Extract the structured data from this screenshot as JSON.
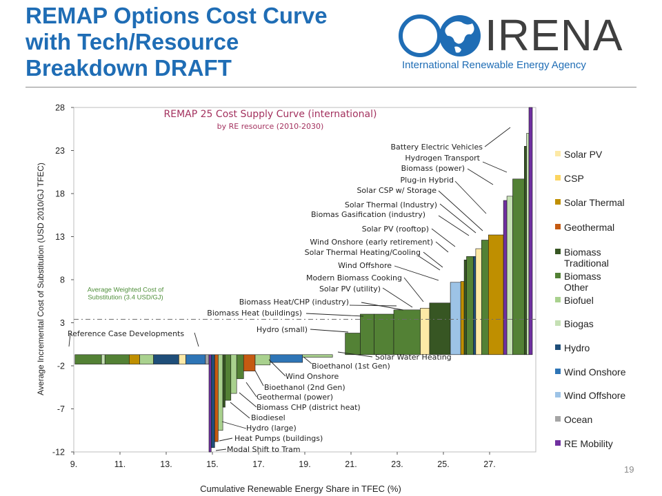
{
  "slide": {
    "title": "REMAP Options Cost Curve\nwith Tech/Resource\nBreakdown DRAFT",
    "page_number": "19"
  },
  "logo": {
    "name": "IRENA",
    "subtitle": "International Renewable Energy Agency",
    "icon": "globe-icon"
  },
  "chart_data": {
    "type": "bar",
    "title": "REMAP 25 Cost Supply Curve (international)",
    "subtitle": "by RE resource (2010-2030)",
    "xlabel": "Cumulative Renewable Energy Share in TFEC (%)",
    "ylabel": "Average Incremental Cost of Substitution (USD 2010/GJ TFEC)",
    "xlim": [
      9,
      29
    ],
    "ylim": [
      -12,
      28
    ],
    "xticks": [
      9,
      11,
      13,
      15,
      17,
      19,
      21,
      23,
      25,
      27
    ],
    "xtick_labels": [
      "9.",
      "11.",
      "13.",
      "15.",
      "17.",
      "19.",
      "21.",
      "23.",
      "25.",
      "27."
    ],
    "yticks": [
      -12,
      -7,
      -2,
      3,
      8,
      13,
      18,
      23,
      28
    ],
    "grid": false,
    "legend_position": "right",
    "average_line": {
      "value": 3.4,
      "label": "Average Weighted Cost of\nSubstitution (3.4 USD/GJ)"
    },
    "categories": [
      "Solar PV",
      "CSP",
      "Solar Thermal",
      "Geothermal",
      "Biomass\nTraditional",
      "Biomass\nOther",
      "Biofuel",
      "Biogas",
      "Hydro",
      "Wind Onshore",
      "Wind Offshore",
      "Ocean",
      "RE Mobility"
    ],
    "colors": {
      "Solar PV": "#fde9a6",
      "CSP": "#fcd560",
      "Solar Thermal": "#bf8f00",
      "Geothermal": "#c55a11",
      "Biomass\nTraditional": "#375623",
      "Biomass\nOther": "#538135",
      "Biofuel": "#a9d18e",
      "Biogas": "#c5e0b4",
      "Hydro": "#1f4e79",
      "Wind Onshore": "#2e75b6",
      "Wind Offshore": "#9dc3e6",
      "Ocean": "#a5a5a5",
      "RE Mobility": "#7030a0"
    },
    "bars": [
      {
        "x0": 9.05,
        "x1": 10.2,
        "value": -1.8,
        "cat": "Biomass\nOther"
      },
      {
        "x0": 10.2,
        "x1": 10.35,
        "value": -1.8,
        "cat": "Biogas"
      },
      {
        "x0": 10.35,
        "x1": 11.4,
        "value": -1.8,
        "cat": "Biomass\nOther"
      },
      {
        "x0": 11.4,
        "x1": 11.85,
        "value": -1.8,
        "cat": "Solar Thermal"
      },
      {
        "x0": 11.85,
        "x1": 12.45,
        "value": -1.8,
        "cat": "Biofuel"
      },
      {
        "x0": 12.45,
        "x1": 13.55,
        "value": -1.8,
        "cat": "Hydro"
      },
      {
        "x0": 13.55,
        "x1": 13.85,
        "value": -1.8,
        "cat": "Solar PV"
      },
      {
        "x0": 13.85,
        "x1": 14.7,
        "value": -1.8,
        "cat": "Wind Onshore"
      },
      {
        "x0": 14.7,
        "x1": 14.85,
        "value": -1.8,
        "cat": "Ocean"
      },
      {
        "x0": 14.85,
        "x1": 14.95,
        "value": -12,
        "cat": "RE Mobility"
      },
      {
        "x0": 14.95,
        "x1": 15.1,
        "value": -11.5,
        "cat": "Hydro"
      },
      {
        "x0": 15.1,
        "x1": 15.25,
        "value": -10.8,
        "cat": "Geothermal"
      },
      {
        "x0": 15.25,
        "x1": 15.45,
        "value": -9.5,
        "cat": "Biofuel"
      },
      {
        "x0": 15.45,
        "x1": 15.55,
        "value": -6.8,
        "cat": "Biomass\nTraditional"
      },
      {
        "x0": 15.55,
        "x1": 15.8,
        "value": -6.0,
        "cat": "Biomass\nOther"
      },
      {
        "x0": 15.8,
        "x1": 16.05,
        "value": -5.2,
        "cat": "Biofuel"
      },
      {
        "x0": 16.05,
        "x1": 16.35,
        "value": -3.5,
        "cat": "Biomass\nOther"
      },
      {
        "x0": 16.35,
        "x1": 16.85,
        "value": -2.6,
        "cat": "Geothermal"
      },
      {
        "x0": 16.85,
        "x1": 17.5,
        "value": -1.9,
        "cat": "Biofuel"
      },
      {
        "x0": 17.5,
        "x1": 18.9,
        "value": -1.6,
        "cat": "Wind Onshore"
      },
      {
        "x0": 18.9,
        "x1": 20.2,
        "value": -1.0,
        "cat": "Biofuel"
      },
      {
        "x0": 20.2,
        "x1": 20.75,
        "value": -0.7,
        "cat": "Solar Thermal"
      },
      {
        "x0": 20.75,
        "x1": 21.4,
        "value": 1.8,
        "cat": "Biomass\nOther"
      },
      {
        "x0": 21.4,
        "x1": 22.0,
        "value": 4.0,
        "cat": "Biomass\nOther"
      },
      {
        "x0": 22.0,
        "x1": 22.85,
        "value": 4.0,
        "cat": "Biomass\nOther"
      },
      {
        "x0": 22.85,
        "x1": 24.0,
        "value": 4.5,
        "cat": "Biomass\nOther"
      },
      {
        "x0": 24.0,
        "x1": 24.4,
        "value": 4.7,
        "cat": "Solar PV"
      },
      {
        "x0": 24.4,
        "x1": 25.3,
        "value": 5.3,
        "cat": "Biomass\nTraditional"
      },
      {
        "x0": 25.3,
        "x1": 25.75,
        "value": 7.7,
        "cat": "Wind Offshore"
      },
      {
        "x0": 25.75,
        "x1": 25.9,
        "value": 7.8,
        "cat": "Solar Thermal"
      },
      {
        "x0": 25.9,
        "x1": 26.0,
        "value": 10.3,
        "cat": "Biomass\nTraditional"
      },
      {
        "x0": 26.0,
        "x1": 26.3,
        "value": 10.7,
        "cat": "Biomass\nOther"
      },
      {
        "x0": 26.3,
        "x1": 26.4,
        "value": 10.7,
        "cat": "Hydro"
      },
      {
        "x0": 26.4,
        "x1": 26.65,
        "value": 11.6,
        "cat": "Solar PV"
      },
      {
        "x0": 26.65,
        "x1": 26.95,
        "value": 12.6,
        "cat": "Biomass\nOther"
      },
      {
        "x0": 26.95,
        "x1": 27.6,
        "value": 13.2,
        "cat": "Solar Thermal"
      },
      {
        "x0": 27.6,
        "x1": 27.75,
        "value": 17.2,
        "cat": "RE Mobility"
      },
      {
        "x0": 27.75,
        "x1": 28.0,
        "value": 17.7,
        "cat": "Biogas"
      },
      {
        "x0": 28.0,
        "x1": 28.5,
        "value": 19.7,
        "cat": "Biomass\nOther"
      },
      {
        "x0": 28.5,
        "x1": 28.6,
        "value": 23.5,
        "cat": "Biomass\nTraditional"
      },
      {
        "x0": 28.6,
        "x1": 28.7,
        "value": 25.0,
        "cat": "Biogas"
      },
      {
        "x0": 28.7,
        "x1": 28.85,
        "value": 28.0,
        "cat": "RE Mobility"
      }
    ],
    "annotations": [
      "Battery Electric Vehicles",
      "Hydrogen Transport",
      "Biomass (power)",
      "Plug-in Hybrid",
      "Solar CSP w/ Storage",
      "Solar Thermal (Industry)",
      "Biomas Gasification (industry)",
      "Solar PV (rooftop)",
      "Wind Onshore (early retirement)",
      "Solar Thermal Heating/Cooling",
      "Wind Offshore",
      "Modern Biomass Cooking",
      "Solar PV (utility)",
      "Biomass Heat/CHP (industry)",
      "Biomass Heat (buildings)",
      "Hydro (small)",
      "Reference Case Developments",
      "Solar Water Heating",
      "Bioethanol (1st Gen)",
      "Wind Onshore",
      "Bioethanol (2nd Gen)",
      "Geothermal (power)",
      "Biomass CHP (district heat)",
      "Biodiesel",
      "Hydro (large)",
      "Heat Pumps (buildings)",
      "Modal Shift to Tram"
    ]
  }
}
